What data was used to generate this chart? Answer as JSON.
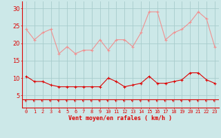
{
  "x": [
    0,
    1,
    2,
    3,
    4,
    5,
    6,
    7,
    8,
    9,
    10,
    11,
    12,
    13,
    14,
    15,
    16,
    17,
    18,
    19,
    20,
    21,
    22,
    23
  ],
  "rafales": [
    24,
    21,
    23,
    24,
    17,
    19,
    17,
    18,
    18,
    21,
    18,
    21,
    21,
    19,
    23,
    29,
    29,
    21,
    23,
    24,
    26,
    29,
    27,
    19
  ],
  "vent_moyen": [
    10.5,
    9,
    9,
    8,
    7.5,
    7.5,
    7.5,
    7.5,
    7.5,
    7.5,
    10,
    9,
    7.5,
    8,
    8.5,
    10.5,
    8.5,
    8.5,
    9,
    9.5,
    11.5,
    11.5,
    9.5,
    8.5
  ],
  "bg_color": "#cce8e8",
  "grid_color": "#a8cccc",
  "line_color_rafales": "#f09090",
  "line_color_vent": "#dd0000",
  "arrow_color": "#dd0000",
  "xlabel": "Vent moyen/en rafales ( km/h )",
  "xlabel_color": "#dd0000",
  "yticks": [
    5,
    10,
    15,
    20,
    25,
    30
  ],
  "ylim": [
    1.5,
    32
  ],
  "xlim": [
    -0.5,
    23.5
  ],
  "tick_color": "#dd0000",
  "spine_color": "#dd0000",
  "markersize_rafales": 3,
  "markersize_vent": 2.5,
  "linewidth": 0.8
}
